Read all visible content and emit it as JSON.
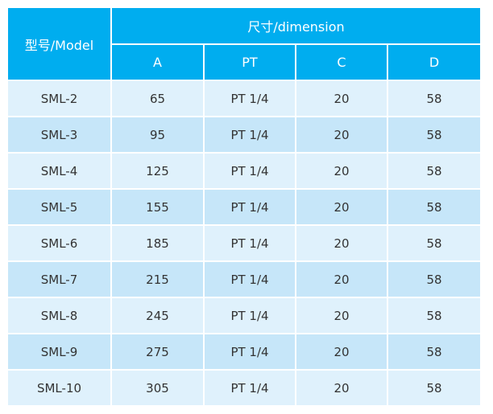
{
  "table": {
    "header": {
      "model": "型号/Model",
      "dimension": "尺寸/dimension",
      "columns": [
        "A",
        "PT",
        "C",
        "D"
      ]
    },
    "rows": [
      [
        "SML-2",
        65,
        "PT 1/4",
        20,
        58
      ],
      [
        "SML-3",
        95,
        "PT 1/4",
        20,
        58
      ],
      [
        "SML-4",
        125,
        "PT 1/4",
        20,
        58
      ],
      [
        "SML-5",
        155,
        "PT 1/4",
        20,
        58
      ],
      [
        "SML-6",
        185,
        "PT 1/4",
        20,
        58
      ],
      [
        "SML-7",
        215,
        "PT 1/4",
        20,
        58
      ],
      [
        "SML-8",
        245,
        "PT 1/4",
        20,
        58
      ],
      [
        "SML-9",
        275,
        "PT 1/4",
        20,
        58
      ],
      [
        "SML-10",
        305,
        "PT 1/4",
        20,
        58
      ]
    ]
  }
}
